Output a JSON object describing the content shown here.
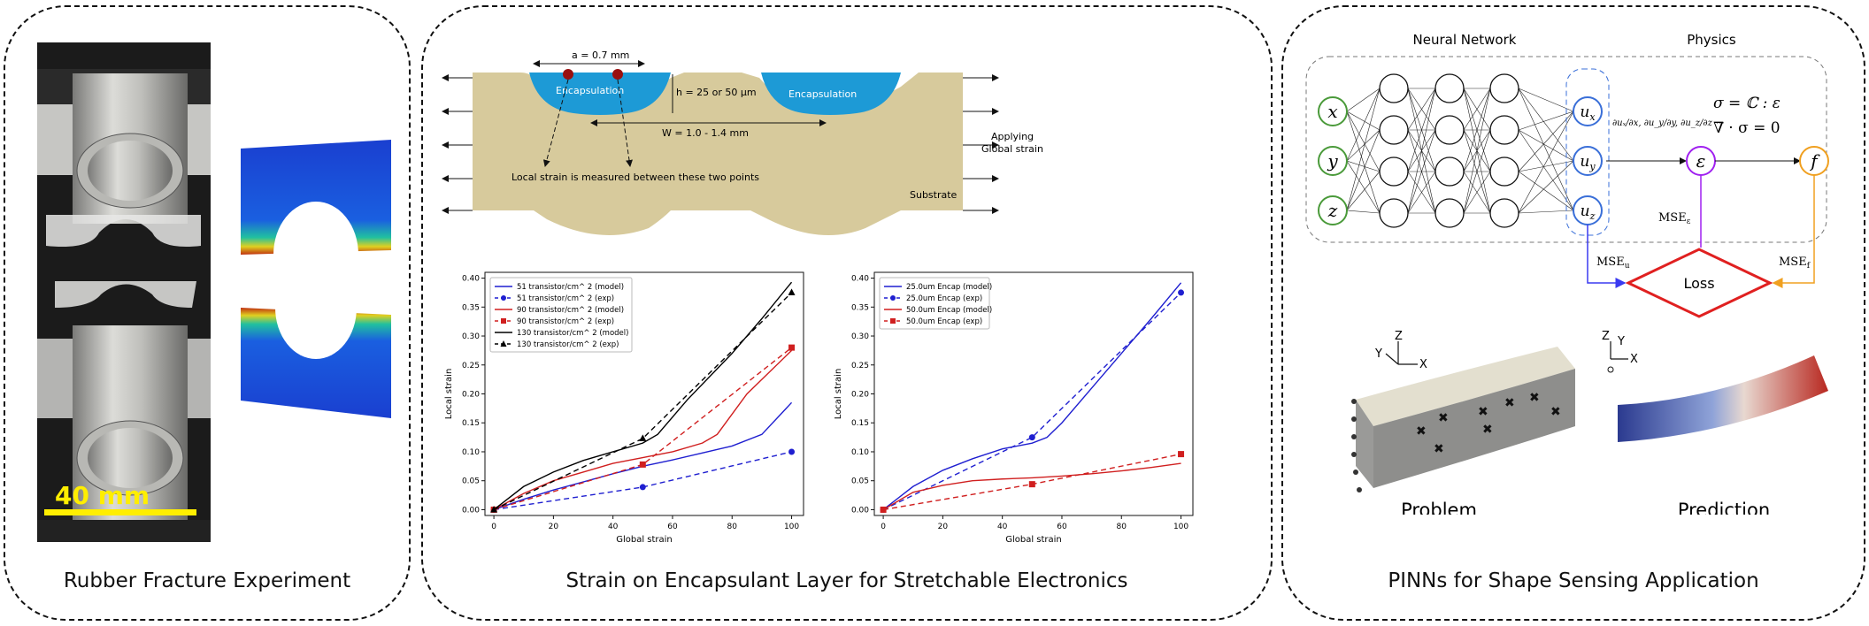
{
  "panel_rubber": {
    "caption": "Rubber Fracture Experiment",
    "scale_label": "40 mm"
  },
  "panel_encapsulant": {
    "caption": "Strain on Encapsulant Layer for Stretchable Electronics",
    "schematic": {
      "a_label": "a = 0.7 mm",
      "h_label": "h = 25 or 50 µm",
      "w_label": "W = 1.0 - 1.4 mm",
      "encap_left": "Encapsulation",
      "encap_right": "Encapsulation",
      "local_strain_note": "Local strain is measured between these two points",
      "applying_label_1": "Applying",
      "applying_label_2": "Global strain",
      "substrate_label": "Substrate"
    }
  },
  "panel_pinn": {
    "caption": "PINNs for Shape Sensing Application",
    "nn_title": "Neural Network",
    "physics_title": "Physics",
    "inputs": [
      "x",
      "y",
      "z"
    ],
    "outputs": [
      "u_x",
      "u_y",
      "u_z"
    ],
    "strain_symbol": "ε",
    "f_symbol": "f",
    "loss_label": "Loss",
    "mse_u": "MSE_u",
    "mse_eps": "MSE_ε",
    "mse_f": "MSE_f",
    "eq1": "σ = ℂ : ε",
    "eq2": "∇ · σ = 0",
    "problem_label": "Problem",
    "prediction_label": "Prediction",
    "axis_z": "Z",
    "axis_y": "Y",
    "axis_x": "X",
    "colors": {
      "input": "#4a9a3a",
      "output": "#3a6fd8",
      "strain": "#a020f0",
      "f": "#f0a020",
      "loss": "#e02020"
    }
  },
  "chart_data": [
    {
      "type": "line",
      "xlabel": "Global strain",
      "ylabel": "Local strain",
      "xlim": [
        -3,
        104
      ],
      "ylim": [
        -0.01,
        0.41
      ],
      "xticks": [
        0,
        20,
        40,
        60,
        80,
        100
      ],
      "yticks": [
        0.0,
        0.05,
        0.1,
        0.15,
        0.2,
        0.25,
        0.3,
        0.35,
        0.4
      ],
      "legend": "top-left",
      "series": [
        {
          "name": "51 transistor/cm^ 2 (model)",
          "color": "#1f1fd0",
          "style": "solid",
          "x": [
            0,
            10,
            20,
            30,
            40,
            50,
            60,
            70,
            80,
            90,
            100
          ],
          "y": [
            0,
            0.018,
            0.034,
            0.048,
            0.062,
            0.075,
            0.086,
            0.098,
            0.11,
            0.13,
            0.185
          ]
        },
        {
          "name": "51 transistor/cm^ 2 (exp)",
          "color": "#1f1fd0",
          "style": "dashed",
          "marker": "circle",
          "x": [
            0,
            50,
            100
          ],
          "y": [
            0,
            0.039,
            0.1
          ]
        },
        {
          "name": "90 transistor/cm^ 2 (model)",
          "color": "#d01f1f",
          "style": "solid",
          "x": [
            0,
            10,
            20,
            30,
            40,
            50,
            60,
            70,
            75,
            85,
            100
          ],
          "y": [
            0,
            0.028,
            0.05,
            0.065,
            0.08,
            0.09,
            0.1,
            0.115,
            0.13,
            0.2,
            0.275
          ]
        },
        {
          "name": "90 transistor/cm^ 2 (exp)",
          "color": "#d01f1f",
          "style": "dashed",
          "marker": "square",
          "x": [
            0,
            50,
            100
          ],
          "y": [
            0,
            0.078,
            0.28
          ]
        },
        {
          "name": "130 transistor/cm^ 2 (model)",
          "color": "#000000",
          "style": "solid",
          "x": [
            0,
            10,
            20,
            30,
            40,
            50,
            55,
            65,
            80,
            90,
            100
          ],
          "y": [
            0,
            0.04,
            0.065,
            0.085,
            0.1,
            0.115,
            0.13,
            0.19,
            0.27,
            0.33,
            0.393
          ]
        },
        {
          "name": "130 transistor/cm^ 2 (exp)",
          "color": "#000000",
          "style": "dashed",
          "marker": "triangle",
          "x": [
            0,
            50,
            100
          ],
          "y": [
            0,
            0.123,
            0.375
          ]
        }
      ]
    },
    {
      "type": "line",
      "xlabel": "Global strain",
      "ylabel": "Local strain",
      "xlim": [
        -3,
        104
      ],
      "ylim": [
        -0.01,
        0.41
      ],
      "xticks": [
        0,
        20,
        40,
        60,
        80,
        100
      ],
      "yticks": [
        0.0,
        0.05,
        0.1,
        0.15,
        0.2,
        0.25,
        0.3,
        0.35,
        0.4
      ],
      "legend": "top-left",
      "series": [
        {
          "name": "25.0um Encap (model)",
          "color": "#1f1fd0",
          "style": "solid",
          "x": [
            0,
            10,
            20,
            30,
            40,
            50,
            55,
            60,
            70,
            80,
            90,
            100
          ],
          "y": [
            0,
            0.04,
            0.068,
            0.088,
            0.105,
            0.115,
            0.125,
            0.15,
            0.21,
            0.27,
            0.33,
            0.392
          ]
        },
        {
          "name": "25.0um Encap (exp)",
          "color": "#1f1fd0",
          "style": "dashed",
          "marker": "circle",
          "x": [
            0,
            50,
            100
          ],
          "y": [
            0,
            0.125,
            0.375
          ]
        },
        {
          "name": "50.0um Encap (model)",
          "color": "#d01f1f",
          "style": "solid",
          "x": [
            0,
            10,
            20,
            30,
            40,
            50,
            60,
            70,
            80,
            90,
            100
          ],
          "y": [
            0,
            0.03,
            0.042,
            0.05,
            0.053,
            0.055,
            0.058,
            0.062,
            0.067,
            0.073,
            0.08
          ]
        },
        {
          "name": "50.0um Encap (exp)",
          "color": "#d01f1f",
          "style": "dashed",
          "marker": "square",
          "x": [
            0,
            50,
            100
          ],
          "y": [
            0,
            0.044,
            0.096
          ]
        }
      ]
    }
  ]
}
